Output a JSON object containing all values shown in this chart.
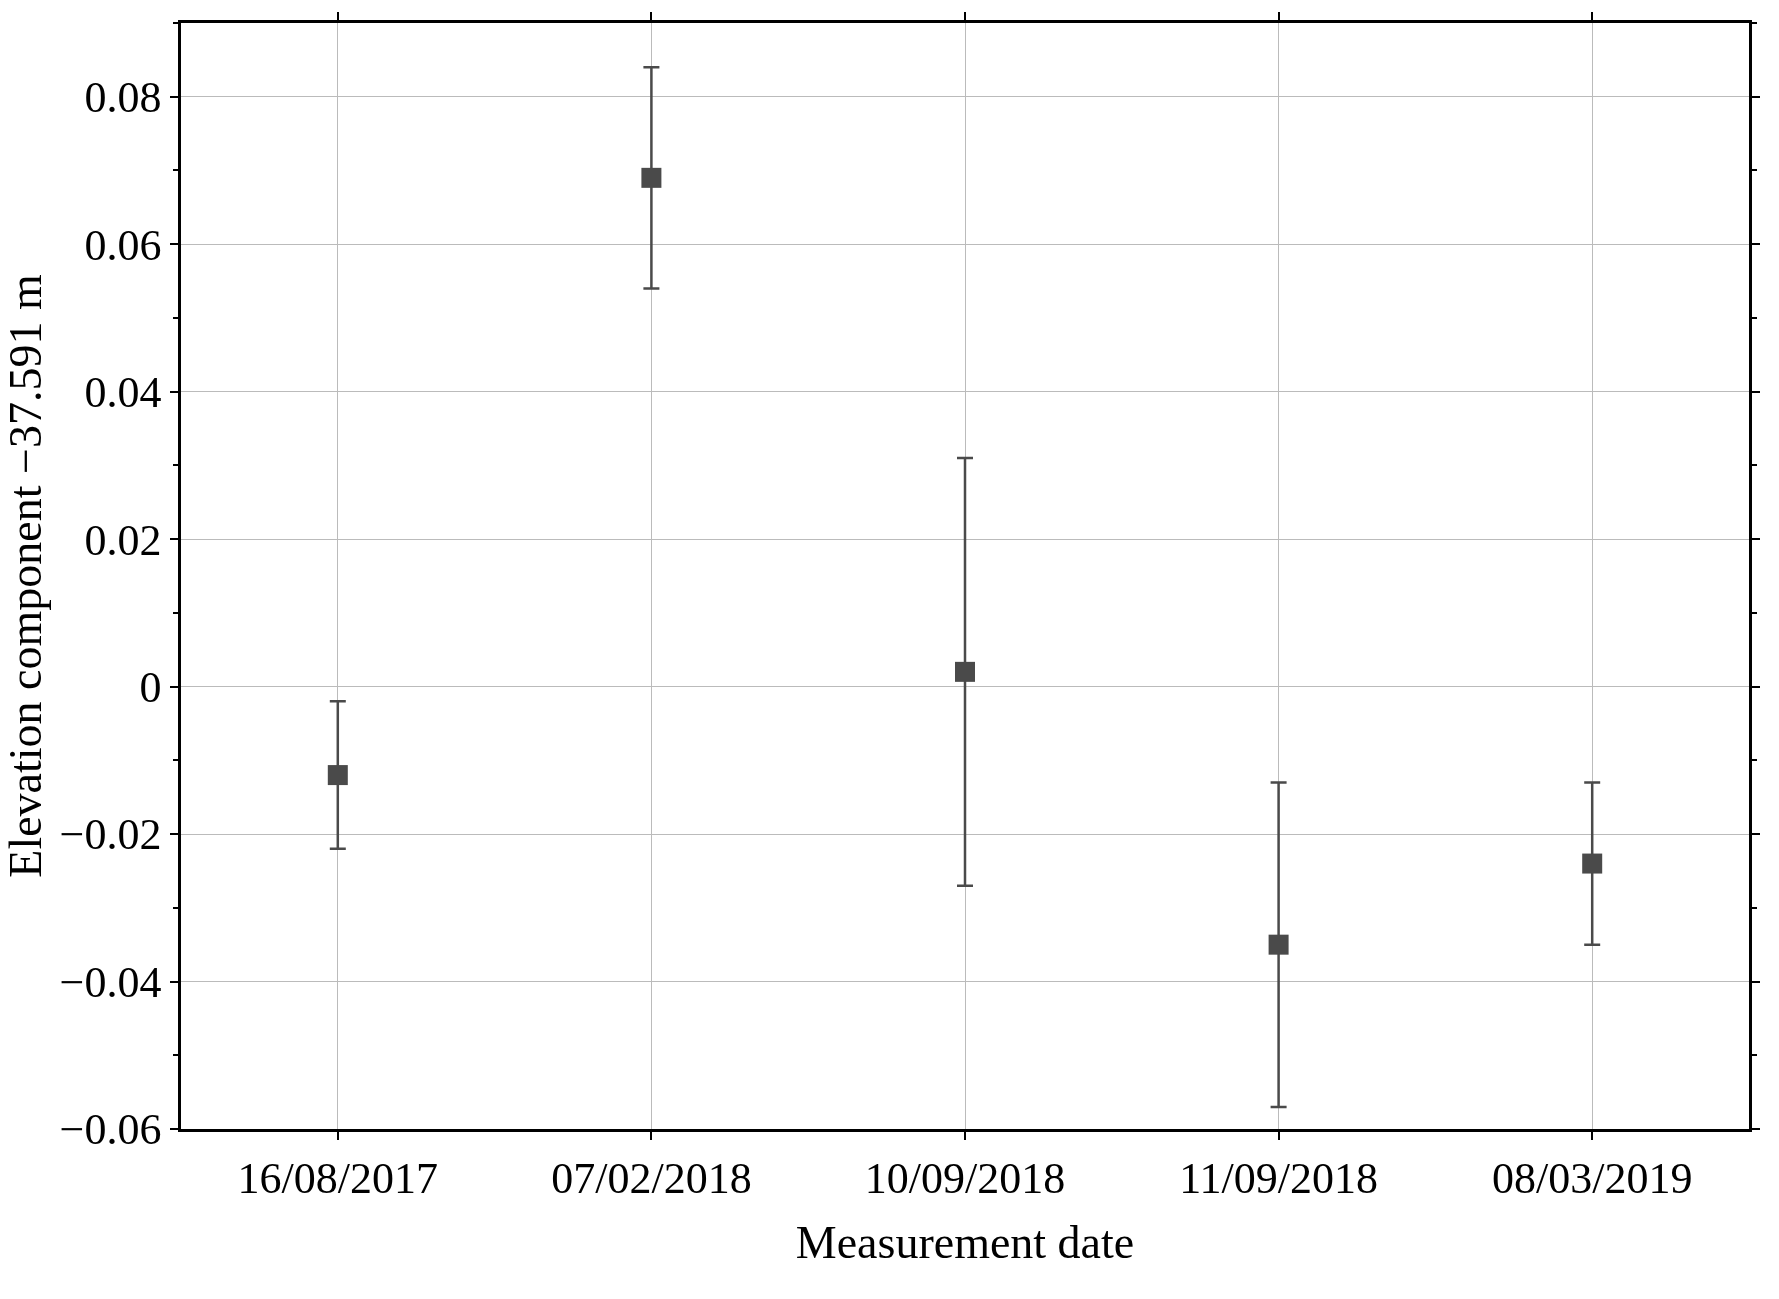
{
  "chart_data": {
    "type": "scatter",
    "xlabel": "Measurement date",
    "ylabel": "Elevation component −37.591 m",
    "categories": [
      "16/08/2017",
      "07/02/2018",
      "10/09/2018",
      "11/09/2018",
      "08/03/2019"
    ],
    "series": [
      {
        "color": "#4a4a4a",
        "values": [
          -0.012,
          0.069,
          0.002,
          -0.035,
          -0.024
        ],
        "errors": [
          [
            -0.022,
            -0.002
          ],
          [
            0.054,
            0.084
          ],
          [
            -0.027,
            0.031
          ],
          [
            -0.057,
            -0.013
          ],
          [
            -0.035,
            -0.013
          ]
        ]
      }
    ],
    "ylim": [
      -0.06,
      0.09
    ],
    "yticks": [
      {
        "value": -0.06,
        "label": "−0.06"
      },
      {
        "value": -0.04,
        "label": "−0.04"
      },
      {
        "value": -0.02,
        "label": "−0.02"
      },
      0,
      0.02,
      0.04,
      0.06,
      0.08
    ],
    "grid": true,
    "marker": "square"
  }
}
